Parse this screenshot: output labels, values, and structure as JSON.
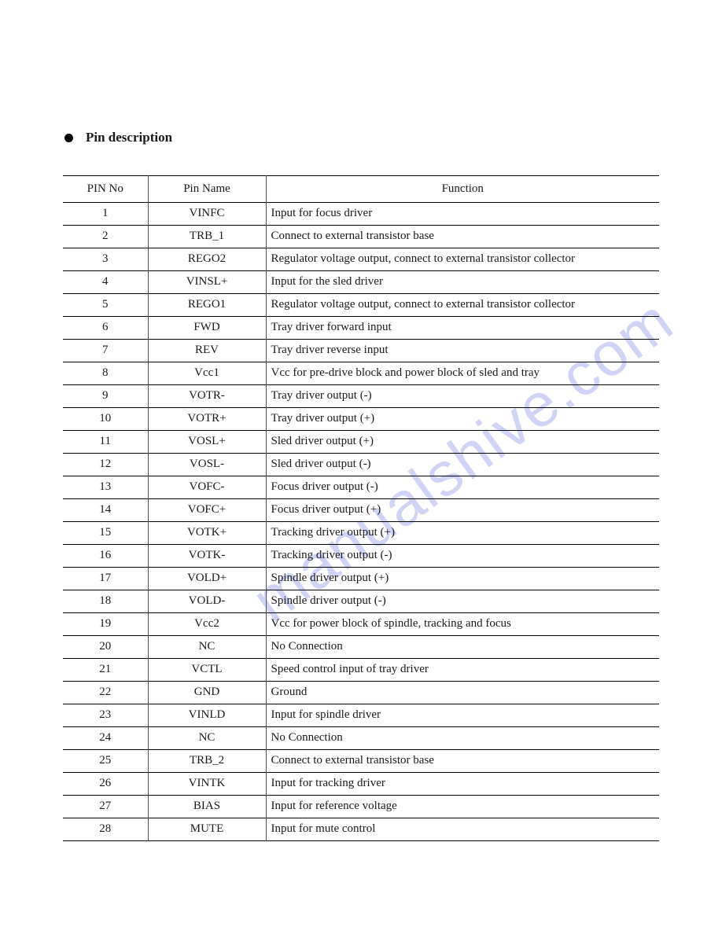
{
  "section_title": "Pin description",
  "watermark_text": "manualshive.com",
  "table": {
    "columns": [
      "PIN No",
      "Pin Name",
      "Function"
    ],
    "rows": [
      {
        "no": "1",
        "name": "VINFC",
        "func": "Input for focus driver"
      },
      {
        "no": "2",
        "name": "TRB_1",
        "func": "Connect to external transistor base"
      },
      {
        "no": "3",
        "name": "REGO2",
        "func": "Regulator voltage output, connect to external transistor collector"
      },
      {
        "no": "4",
        "name": "VINSL+",
        "func": "Input for the sled driver"
      },
      {
        "no": "5",
        "name": "REGO1",
        "func": "Regulator voltage output, connect to external transistor collector"
      },
      {
        "no": "6",
        "name": "FWD",
        "func": "Tray driver forward input"
      },
      {
        "no": "7",
        "name": "REV",
        "func": "Tray driver reverse input"
      },
      {
        "no": "8",
        "name": "Vcc1",
        "func": "Vcc for pre-drive block and power block of sled and tray"
      },
      {
        "no": "9",
        "name": "VOTR-",
        "func": "Tray driver output (-)"
      },
      {
        "no": "10",
        "name": "VOTR+",
        "func": "Tray driver output (+)"
      },
      {
        "no": "11",
        "name": "VOSL+",
        "func": "Sled driver output (+)"
      },
      {
        "no": "12",
        "name": "VOSL-",
        "func": "Sled driver output (-)"
      },
      {
        "no": "13",
        "name": "VOFC-",
        "func": "Focus driver output (-)"
      },
      {
        "no": "14",
        "name": "VOFC+",
        "func": "Focus driver output (+)"
      },
      {
        "no": "15",
        "name": "VOTK+",
        "func": "Tracking driver output (+)"
      },
      {
        "no": "16",
        "name": "VOTK-",
        "func": "Tracking driver output (-)"
      },
      {
        "no": "17",
        "name": "VOLD+",
        "func": "Spindle driver output (+)"
      },
      {
        "no": "18",
        "name": "VOLD-",
        "func": "Spindle driver output (-)"
      },
      {
        "no": "19",
        "name": "Vcc2",
        "func": "Vcc for power block of spindle, tracking and focus"
      },
      {
        "no": "20",
        "name": "NC",
        "func": "No Connection"
      },
      {
        "no": "21",
        "name": "VCTL",
        "func": "Speed control input of tray driver"
      },
      {
        "no": "22",
        "name": "GND",
        "func": "Ground"
      },
      {
        "no": "23",
        "name": "VINLD",
        "func": "Input for spindle driver"
      },
      {
        "no": "24",
        "name": "NC",
        "func": "No Connection"
      },
      {
        "no": "25",
        "name": "TRB_2",
        "func": "Connect to external transistor base"
      },
      {
        "no": "26",
        "name": "VINTK",
        "func": "Input for tracking driver"
      },
      {
        "no": "27",
        "name": "BIAS",
        "func": "Input for reference voltage"
      },
      {
        "no": "28",
        "name": "MUTE",
        "func": "Input for mute control"
      }
    ]
  }
}
